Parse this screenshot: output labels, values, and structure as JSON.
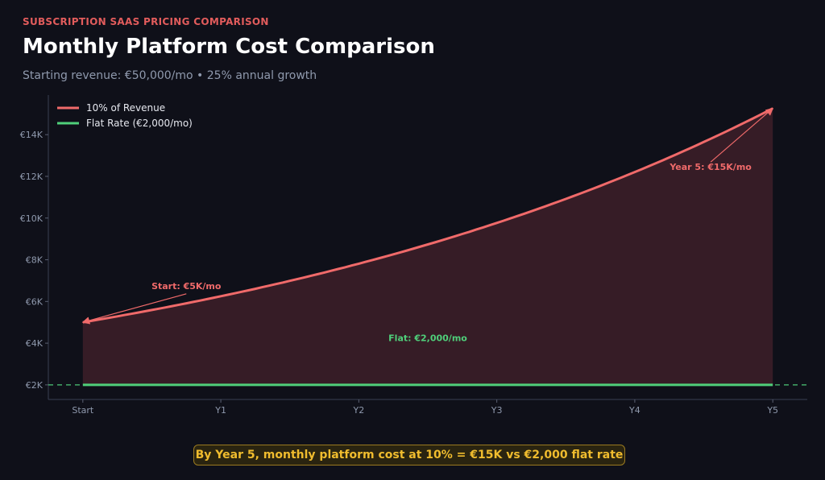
{
  "header": {
    "eyebrow": "SUBSCRIPTION SAAS PRICING COMPARISON",
    "title": "Monthly Platform Cost Comparison",
    "subtitle": "Starting revenue: €50,000/mo • 25% annual growth"
  },
  "callout": "By Year 5, monthly platform cost at 10% = €15K vs €2,000 flat rate",
  "colors": {
    "background": "#0f1019",
    "revenue": "#f06a6a",
    "flat": "#4fcf7a",
    "fill": "#3b1e28",
    "axis_text": "#8f99ad",
    "callout_text": "#f0bc2e"
  },
  "chart_data": {
    "type": "line",
    "x": [
      0,
      1,
      2,
      3,
      4,
      5
    ],
    "categories": [
      "Start",
      "Y1",
      "Y2",
      "Y3",
      "Y4",
      "Y5"
    ],
    "xlim": [
      -0.25,
      5.25
    ],
    "ylim": [
      1300,
      15900
    ],
    "yticks": [
      2000,
      4000,
      6000,
      8000,
      10000,
      12000,
      14000
    ],
    "ytick_labels": [
      "€2K",
      "€4K",
      "€6K",
      "€8K",
      "€10K",
      "€12K",
      "€14K"
    ],
    "series": [
      {
        "name": "10% of Revenue",
        "color": "#f06a6a",
        "values": [
          5000,
          6250,
          7813,
          9766,
          12207,
          15259
        ],
        "growth_rate": 0.25,
        "fill": true
      },
      {
        "name": "Flat Rate (€2,000/mo)",
        "color": "#4fcf7a",
        "values": [
          2000,
          2000,
          2000,
          2000,
          2000,
          2000
        ],
        "dashed_extension": true
      }
    ],
    "annotations": [
      {
        "text": "Start: €5K/mo",
        "x": 0,
        "y": 5000,
        "text_x": 0.75,
        "text_y": 6600,
        "color": "#f06a6a",
        "arrow": true
      },
      {
        "text": "Year 5: €15K/mo",
        "x": 5,
        "y": 15259,
        "text_x": 4.55,
        "text_y": 12300,
        "color": "#f06a6a",
        "arrow": true
      },
      {
        "text": "Flat: €2,000/mo",
        "x": 2.5,
        "y": 4100,
        "color": "#4fcf7a",
        "arrow": false
      }
    ],
    "legend": "top-left",
    "grid": false
  }
}
